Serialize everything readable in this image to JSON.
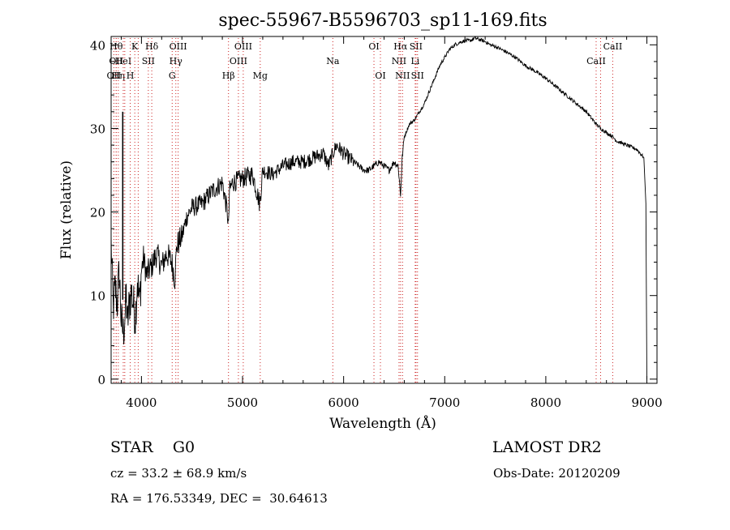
{
  "chart_data": {
    "type": "line",
    "title": "spec-55967-B5596703_sp11-169.fits",
    "xlabel": "Wavelength (Å)",
    "ylabel": "Flux (relative)",
    "xlim": [
      3700,
      9100
    ],
    "ylim": [
      -0.5,
      41
    ],
    "xticks": [
      4000,
      5000,
      6000,
      7000,
      8000,
      9000
    ],
    "yticks": [
      0,
      10,
      20,
      30,
      40
    ],
    "grid": false,
    "series": [
      {
        "x": [
          3700,
          3720,
          3740,
          3760,
          3780,
          3800,
          3820,
          3840,
          3850,
          3860,
          3880,
          3900,
          3920,
          3940,
          3960,
          3980,
          4000,
          4020,
          4050,
          4100,
          4150,
          4200,
          4250,
          4300,
          4330,
          4350,
          4400,
          4450,
          4500,
          4600,
          4700,
          4800,
          4850,
          4861,
          4870,
          4900,
          5000,
          5100,
          5170,
          5200,
          5300,
          5400,
          5500,
          5600,
          5700,
          5800,
          5850,
          5893,
          5930,
          6000,
          6100,
          6200,
          6250,
          6300,
          6350,
          6400,
          6450,
          6500,
          6540,
          6563,
          6580,
          6600,
          6650,
          6700,
          6750,
          6800,
          6850,
          6900,
          6950,
          7000,
          7050,
          7100,
          7150,
          7200,
          7250,
          7300,
          7350,
          7400,
          7450,
          7500,
          7600,
          7700,
          7800,
          7900,
          8000,
          8100,
          8200,
          8300,
          8400,
          8500,
          8542,
          8600,
          8662,
          8700,
          8800,
          8900,
          8970,
          8990,
          9000
        ],
        "y": [
          16.5,
          8.5,
          11.0,
          9.0,
          13.0,
          7.0,
          5.5,
          8.0,
          10.0,
          6.5,
          9.0,
          10.5,
          9.0,
          7.5,
          12.0,
          9.0,
          13.0,
          14.5,
          12.5,
          13.5,
          15.0,
          13.5,
          15.0,
          14.0,
          12.0,
          16.0,
          17.0,
          19.5,
          20.5,
          21.0,
          22.5,
          23.5,
          20.0,
          18.0,
          22.5,
          23.5,
          24.0,
          24.5,
          21.0,
          25.0,
          24.5,
          25.5,
          26.0,
          26.0,
          26.5,
          27.0,
          25.5,
          27.0,
          28.0,
          27.0,
          26.0,
          25.0,
          25.0,
          25.5,
          26.0,
          25.5,
          25.0,
          26.0,
          25.5,
          22.0,
          26.5,
          29.0,
          30.5,
          31.0,
          32.0,
          33.0,
          34.5,
          36.0,
          37.5,
          38.5,
          39.5,
          40.0,
          40.3,
          40.5,
          40.5,
          40.8,
          40.6,
          40.4,
          40.0,
          39.8,
          39.2,
          38.5,
          37.5,
          36.8,
          36.0,
          35.0,
          34.0,
          33.0,
          32.0,
          30.5,
          30.0,
          29.5,
          29.0,
          28.5,
          28.0,
          27.5,
          26.5,
          21.0,
          0.0
        ]
      }
    ],
    "spike": {
      "x": 3815,
      "y_low": 9.5,
      "y_high": 32.0
    },
    "lines": [
      {
        "x": 3727,
        "label": "OII",
        "row": 3
      },
      {
        "x": 3750,
        "label": "Hθ",
        "row": 1
      },
      {
        "x": 3750,
        "label": "OII",
        "row": 2
      },
      {
        "x": 3771,
        "label": "Hη",
        "row": 3
      },
      {
        "x": 3820,
        "label": "HeI",
        "row": 2
      },
      {
        "x": 3835,
        "label": "",
        "row": 0
      },
      {
        "x": 3889,
        "label": "H",
        "row": 3
      },
      {
        "x": 3934,
        "label": "K",
        "row": 1
      },
      {
        "x": 3968,
        "label": "",
        "row": 0
      },
      {
        "x": 4068,
        "label": "SII",
        "row": 2
      },
      {
        "x": 4102,
        "label": "Hδ",
        "row": 1
      },
      {
        "x": 4304,
        "label": "G",
        "row": 3
      },
      {
        "x": 4340,
        "label": "Hγ",
        "row": 2
      },
      {
        "x": 4363,
        "label": "OIII",
        "row": 1
      },
      {
        "x": 4861,
        "label": "Hβ",
        "row": 3
      },
      {
        "x": 4959,
        "label": "OIII",
        "row": 2
      },
      {
        "x": 5007,
        "label": "OIII",
        "row": 1
      },
      {
        "x": 5175,
        "label": "Mg",
        "row": 3
      },
      {
        "x": 5893,
        "label": "Na",
        "row": 2
      },
      {
        "x": 6300,
        "label": "OI",
        "row": 1
      },
      {
        "x": 6364,
        "label": "OI",
        "row": 3
      },
      {
        "x": 6548,
        "label": "NII",
        "row": 2
      },
      {
        "x": 6563,
        "label": "Hα",
        "row": 1
      },
      {
        "x": 6583,
        "label": "NII",
        "row": 3
      },
      {
        "x": 6708,
        "label": "Li",
        "row": 2
      },
      {
        "x": 6716,
        "label": "SII",
        "row": 1
      },
      {
        "x": 6731,
        "label": "SII",
        "row": 3
      },
      {
        "x": 8498,
        "label": "CaII",
        "row": 2
      },
      {
        "x": 8542,
        "label": "",
        "row": 0
      },
      {
        "x": 8662,
        "label": "CaII",
        "row": 1
      }
    ]
  },
  "info": {
    "class_line": "STAR    G0",
    "survey": "LAMOST DR2",
    "cz": "cz = 33.2 ± 68.9 km/s",
    "obs_date": "Obs-Date: 20120209",
    "coords": "RA = 176.53349, DEC =  30.64613"
  },
  "colors": {
    "spectrum": "#000000",
    "line_marker": "#cc2222",
    "axes": "#000000"
  }
}
